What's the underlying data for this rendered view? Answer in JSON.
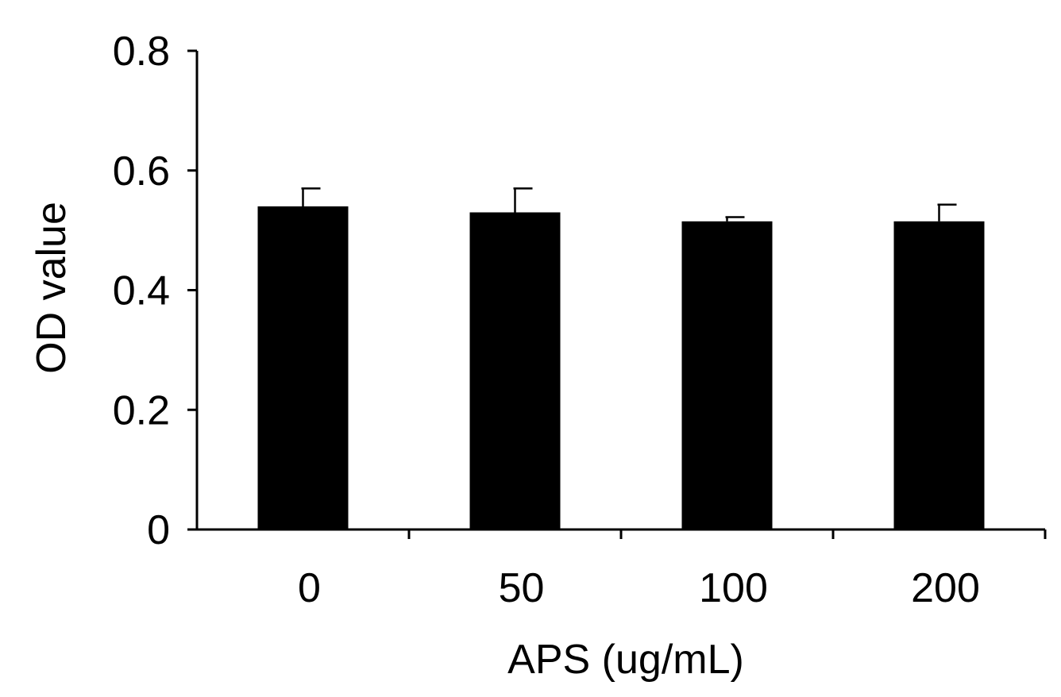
{
  "chart_data": {
    "type": "bar",
    "title": "",
    "xlabel": "APS (ug/mL)",
    "ylabel": "OD value",
    "categories": [
      "0",
      "50",
      "100",
      "200"
    ],
    "values": [
      0.54,
      0.53,
      0.515,
      0.515
    ],
    "errors": [
      0.03,
      0.04,
      0.007,
      0.028
    ],
    "ylim": [
      0,
      0.8
    ],
    "yticks": [
      0,
      0.2,
      0.4,
      0.6,
      0.8
    ],
    "ytick_labels": [
      "0",
      "0.2",
      "0.4",
      "0.6",
      "0.8"
    ],
    "grid": false,
    "legend": "none",
    "colors": {
      "bar": "#000000",
      "axis": "#000000",
      "background": "#ffffff"
    }
  }
}
